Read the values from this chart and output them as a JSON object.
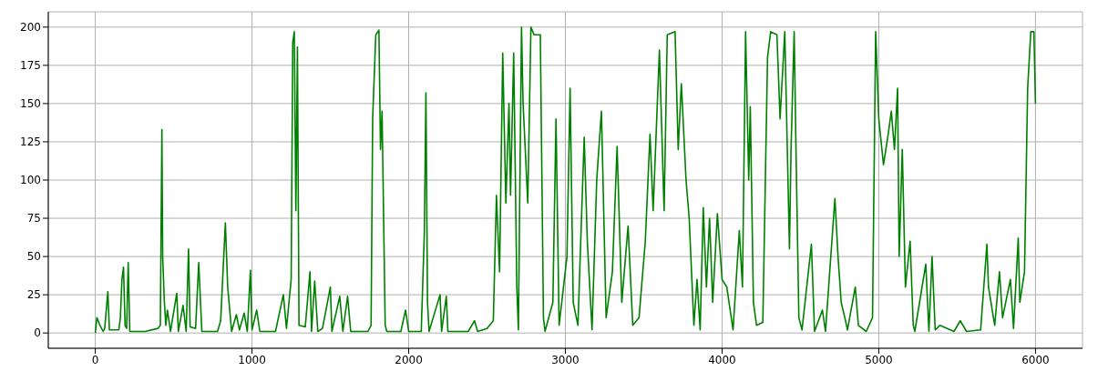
{
  "chart_data": {
    "type": "line",
    "x": [
      0,
      10,
      30,
      50,
      60,
      70,
      80,
      90,
      150,
      160,
      170,
      180,
      190,
      200,
      210,
      220,
      300,
      320,
      400,
      415,
      420,
      425,
      430,
      440,
      450,
      460,
      480,
      520,
      530,
      560,
      580,
      595,
      605,
      640,
      660,
      680,
      780,
      800,
      830,
      845,
      870,
      900,
      920,
      950,
      970,
      990,
      1000,
      1030,
      1050,
      1150,
      1200,
      1220,
      1250,
      1260,
      1270,
      1280,
      1290,
      1300,
      1340,
      1370,
      1380,
      1400,
      1420,
      1450,
      1500,
      1510,
      1560,
      1580,
      1610,
      1630,
      1740,
      1760,
      1770,
      1790,
      1810,
      1820,
      1830,
      1850,
      1860,
      1950,
      1980,
      2000,
      2080,
      2100,
      2110,
      2120,
      2130,
      2200,
      2210,
      2240,
      2250,
      2380,
      2420,
      2440,
      2500,
      2540,
      2560,
      2580,
      2600,
      2620,
      2640,
      2650,
      2670,
      2690,
      2700,
      2720,
      2730,
      2760,
      2780,
      2800,
      2820,
      2840,
      2860,
      2870,
      2920,
      2940,
      2960,
      3010,
      3030,
      3050,
      3080,
      3120,
      3140,
      3170,
      3200,
      3230,
      3260,
      3300,
      3330,
      3360,
      3400,
      3430,
      3470,
      3510,
      3540,
      3560,
      3600,
      3630,
      3650,
      3700,
      3720,
      3740,
      3770,
      3790,
      3820,
      3840,
      3860,
      3880,
      3900,
      3920,
      3940,
      3970,
      4000,
      4030,
      4070,
      4110,
      4130,
      4150,
      4170,
      4180,
      4200,
      4220,
      4260,
      4290,
      4310,
      4350,
      4370,
      4400,
      4430,
      4440,
      4460,
      4470,
      4490,
      4510,
      4570,
      4590,
      4640,
      4660,
      4720,
      4740,
      4760,
      4790,
      4800,
      4850,
      4870,
      4920,
      4960,
      4980,
      5000,
      5030,
      5060,
      5080,
      5100,
      5120,
      5130,
      5150,
      5170,
      5200,
      5220,
      5230,
      5300,
      5320,
      5340,
      5360,
      5390,
      5480,
      5520,
      5560,
      5650,
      5690,
      5700,
      5740,
      5770,
      5790,
      5840,
      5860,
      5890,
      5900,
      5930,
      5950,
      5970,
      5990,
      6000
    ],
    "series": [
      {
        "color": "#008000",
        "values": [
          0,
          10,
          5,
          1,
          3,
          15,
          27,
          2,
          2,
          10,
          35,
          43,
          5,
          3,
          46,
          1,
          1,
          1,
          3,
          5,
          70,
          133,
          50,
          22,
          5,
          15,
          1,
          26,
          1,
          18,
          1,
          55,
          4,
          3,
          46,
          1,
          1,
          8,
          72,
          30,
          1,
          12,
          2,
          13,
          1,
          41,
          2,
          15,
          1,
          1,
          25,
          3,
          35,
          190,
          197,
          80,
          187,
          5,
          4,
          40,
          1,
          34,
          1,
          3,
          30,
          1,
          24,
          1,
          24,
          1,
          1,
          5,
          140,
          195,
          198,
          120,
          145,
          5,
          1,
          1,
          15,
          1,
          1,
          66,
          157,
          20,
          1,
          25,
          1,
          24,
          1,
          1,
          8,
          1,
          3,
          8,
          90,
          40,
          183,
          85,
          150,
          90,
          183,
          30,
          2,
          200,
          150,
          85,
          200,
          195,
          195,
          195,
          10,
          1,
          20,
          140,
          5,
          50,
          160,
          20,
          5,
          128,
          60,
          2,
          100,
          145,
          10,
          40,
          122,
          20,
          70,
          5,
          10,
          60,
          130,
          80,
          185,
          80,
          195,
          197,
          120,
          163,
          100,
          75,
          5,
          35,
          2,
          82,
          30,
          75,
          20,
          78,
          35,
          30,
          2,
          67,
          30,
          197,
          100,
          148,
          20,
          5,
          7,
          180,
          197,
          195,
          140,
          197,
          55,
          120,
          197,
          130,
          10,
          2,
          58,
          1,
          15,
          1,
          88,
          50,
          20,
          7,
          2,
          30,
          5,
          1,
          10,
          197,
          140,
          110,
          130,
          145,
          120,
          160,
          50,
          120,
          30,
          60,
          5,
          1,
          45,
          1,
          50,
          2,
          5,
          1,
          8,
          1,
          2,
          58,
          30,
          5,
          40,
          10,
          35,
          3,
          62,
          20,
          40,
          160,
          197,
          197,
          150
        ]
      }
    ],
    "xlim": [
      -300,
      6300
    ],
    "ylim": [
      -10,
      210
    ],
    "xticks": [
      0,
      1000,
      2000,
      3000,
      4000,
      5000,
      6000
    ],
    "yticks": [
      0,
      25,
      50,
      75,
      100,
      125,
      150,
      175,
      200
    ],
    "grid": true
  }
}
